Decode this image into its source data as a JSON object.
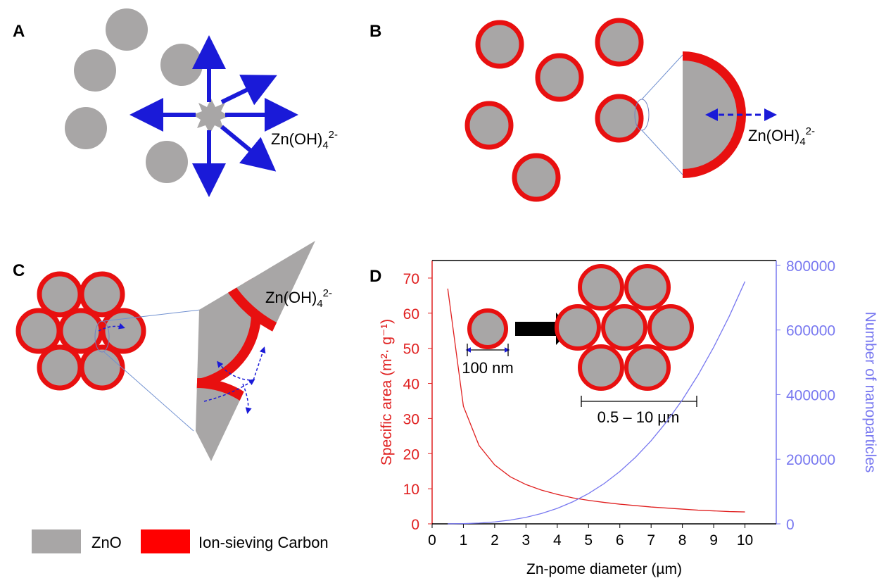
{
  "panels": {
    "a": {
      "label": "A",
      "ion": "Zn(OH)",
      "ion_sub": "4",
      "ion_sup": "2-"
    },
    "b": {
      "label": "B",
      "ion": "Zn(OH)",
      "ion_sub": "4",
      "ion_sup": "2-"
    },
    "c": {
      "label": "C",
      "ion": "Zn(OH)",
      "ion_sub": "4",
      "ion_sup": "2-"
    },
    "d": {
      "label": "D"
    }
  },
  "legend": [
    "ZnO",
    "Ion-sieving Carbon"
  ],
  "chart_data": {
    "type": "line",
    "x_label": "Zn-pome diameter (µm)",
    "y_label": "Specific area (m²· g⁻¹)",
    "y2_label": "Number of nanoparticles",
    "annotations": [
      "100 nm",
      "0.5 – 10 µm"
    ],
    "x": [
      0.5,
      1,
      1.5,
      2,
      2.5,
      3,
      3.5,
      4,
      4.5,
      5,
      5.5,
      6,
      6.5,
      7,
      7.5,
      8,
      8.5,
      9,
      9.5,
      10
    ],
    "series": [
      {
        "color": "#e02020",
        "axis": "y",
        "values": [
          67,
          33.5,
          22.3,
          16.8,
          13.4,
          11.2,
          9.6,
          8.4,
          7.4,
          6.7,
          6.1,
          5.6,
          5.2,
          4.8,
          4.5,
          4.2,
          3.9,
          3.7,
          3.5,
          3.4
        ]
      },
      {
        "color": "#7878f0",
        "axis": "y2",
        "values": [
          94,
          750,
          2531,
          6000,
          11719,
          20250,
          32156,
          48000,
          68344,
          93750,
          124781,
          162000,
          205969,
          257250,
          316406,
          384000,
          460594,
          546750,
          643031,
          750000
        ]
      }
    ],
    "xlim": [
      0,
      11
    ],
    "xticks": [
      0,
      1,
      2,
      3,
      4,
      5,
      6,
      7,
      8,
      9,
      10
    ],
    "ylim": [
      0,
      75
    ],
    "yticks": [
      0,
      10,
      20,
      30,
      40,
      50,
      60,
      70
    ],
    "y2lim": [
      0,
      815000
    ],
    "y2ticks": [
      0,
      200000,
      400000,
      600000,
      800000
    ],
    "y_color": "#e02020",
    "y2_color": "#7878f0"
  }
}
